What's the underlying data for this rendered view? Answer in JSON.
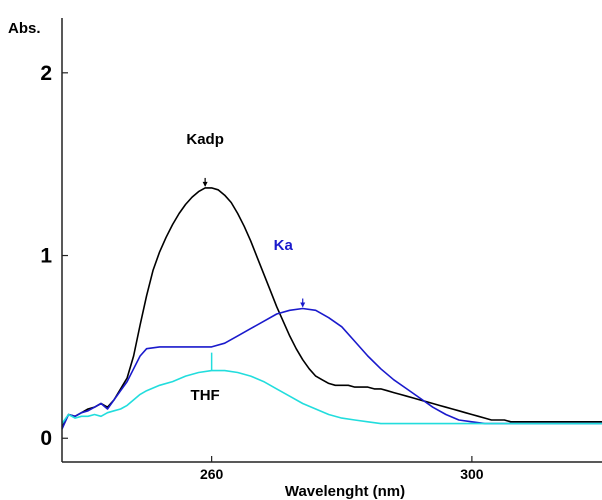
{
  "chart_data": {
    "type": "line",
    "title": "",
    "xlabel": "Wavelenght (nm)",
    "ylabel": "Abs.",
    "xlim": [
      237,
      320
    ],
    "ylim": [
      -0.13,
      2.3
    ],
    "x_ticks": [
      260,
      300
    ],
    "y_ticks": [
      0,
      1,
      2
    ],
    "grid": false,
    "legend": "none",
    "series": [
      {
        "name": "Kadp",
        "color": "#000000",
        "x": [
          237,
          238,
          239,
          240,
          241,
          242,
          243,
          244,
          245,
          246,
          247,
          248,
          249,
          250,
          251,
          252,
          253,
          254,
          255,
          256,
          257,
          258,
          259,
          260,
          261,
          262,
          263,
          264,
          265,
          266,
          267,
          268,
          269,
          270,
          271,
          272,
          273,
          274,
          275,
          276,
          277,
          278,
          279,
          280,
          281,
          282,
          283,
          284,
          285,
          286,
          287,
          288,
          289,
          290,
          291,
          292,
          293,
          294,
          295,
          296,
          297,
          298,
          299,
          300,
          301,
          302,
          303,
          304,
          305,
          306,
          307,
          308,
          310,
          312,
          314,
          316,
          318,
          320
        ],
        "y": [
          0.06,
          0.13,
          0.12,
          0.14,
          0.16,
          0.17,
          0.19,
          0.17,
          0.21,
          0.27,
          0.33,
          0.45,
          0.62,
          0.78,
          0.92,
          1.02,
          1.1,
          1.17,
          1.23,
          1.28,
          1.32,
          1.35,
          1.37,
          1.37,
          1.36,
          1.33,
          1.29,
          1.23,
          1.16,
          1.08,
          0.99,
          0.9,
          0.81,
          0.72,
          0.64,
          0.56,
          0.49,
          0.43,
          0.38,
          0.34,
          0.32,
          0.3,
          0.29,
          0.29,
          0.29,
          0.28,
          0.28,
          0.28,
          0.27,
          0.27,
          0.26,
          0.25,
          0.24,
          0.23,
          0.22,
          0.21,
          0.2,
          0.19,
          0.18,
          0.17,
          0.16,
          0.15,
          0.14,
          0.13,
          0.12,
          0.11,
          0.1,
          0.1,
          0.1,
          0.09,
          0.09,
          0.09,
          0.09,
          0.09,
          0.09,
          0.09,
          0.09,
          0.09
        ]
      },
      {
        "name": "Ka",
        "color": "#1a1acc",
        "x": [
          237,
          238,
          239,
          240,
          241,
          242,
          243,
          244,
          245,
          246,
          247,
          248,
          249,
          250,
          252,
          254,
          256,
          258,
          260,
          262,
          264,
          266,
          268,
          270,
          272,
          274,
          276,
          278,
          280,
          282,
          284,
          286,
          288,
          290,
          292,
          294,
          296,
          298,
          300,
          302,
          304,
          306,
          308,
          310,
          312,
          314,
          316,
          318,
          320
        ],
        "y": [
          0.05,
          0.13,
          0.12,
          0.14,
          0.15,
          0.17,
          0.19,
          0.16,
          0.21,
          0.26,
          0.31,
          0.38,
          0.45,
          0.49,
          0.5,
          0.5,
          0.5,
          0.5,
          0.5,
          0.52,
          0.56,
          0.6,
          0.64,
          0.68,
          0.7,
          0.71,
          0.7,
          0.66,
          0.61,
          0.53,
          0.45,
          0.38,
          0.32,
          0.27,
          0.22,
          0.17,
          0.13,
          0.1,
          0.09,
          0.08,
          0.08,
          0.08,
          0.08,
          0.08,
          0.08,
          0.08,
          0.08,
          0.08,
          0.08
        ]
      },
      {
        "name": "THF",
        "color": "#22dddd",
        "x": [
          237,
          238,
          239,
          240,
          241,
          242,
          243,
          244,
          245,
          246,
          247,
          248,
          249,
          250,
          252,
          254,
          256,
          258,
          260,
          262,
          264,
          266,
          268,
          270,
          272,
          274,
          276,
          278,
          280,
          282,
          284,
          286,
          290,
          295,
          300,
          305,
          310,
          315,
          320
        ],
        "y": [
          0.08,
          0.13,
          0.11,
          0.12,
          0.12,
          0.13,
          0.12,
          0.14,
          0.15,
          0.16,
          0.18,
          0.21,
          0.24,
          0.26,
          0.29,
          0.31,
          0.34,
          0.36,
          0.37,
          0.37,
          0.36,
          0.34,
          0.31,
          0.27,
          0.23,
          0.19,
          0.16,
          0.13,
          0.11,
          0.1,
          0.09,
          0.08,
          0.08,
          0.08,
          0.08,
          0.08,
          0.08,
          0.08,
          0.08
        ]
      }
    ],
    "annotations": [
      {
        "text": "Kadp",
        "series": "Kadp",
        "color": "#000000",
        "peak_x": 259,
        "peak_y": 1.37,
        "label_x": 259,
        "label_y": 1.61
      },
      {
        "text": "Ka",
        "series": "Ka",
        "color": "#1a1acc",
        "peak_x": 274,
        "peak_y": 0.71,
        "label_x": 271,
        "label_y": 1.03
      },
      {
        "text": "THF",
        "series": "THF",
        "color": "#22dddd",
        "peak_x": 260,
        "peak_y": 0.37,
        "label_x": 259,
        "label_y": 0.21,
        "label_color": "#000000"
      }
    ]
  }
}
